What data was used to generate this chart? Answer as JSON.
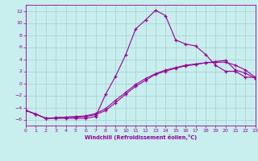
{
  "xlabel": "Windchill (Refroidissement éolien,°C)",
  "xlim": [
    0,
    23
  ],
  "ylim": [
    -7,
    13
  ],
  "xticks": [
    0,
    1,
    2,
    3,
    4,
    5,
    6,
    7,
    8,
    9,
    10,
    11,
    12,
    13,
    14,
    15,
    16,
    17,
    18,
    19,
    20,
    21,
    22,
    23
  ],
  "yticks": [
    -6,
    -4,
    -2,
    0,
    2,
    4,
    6,
    8,
    10,
    12
  ],
  "bg_color": "#c8eeee",
  "grid_color": "#aad4d4",
  "line_color": "#990099",
  "curve1_x": [
    0,
    1,
    2,
    3,
    4,
    5,
    6,
    7,
    8,
    9,
    10,
    11,
    12,
    13,
    14,
    15,
    16,
    17,
    18,
    19,
    20,
    21,
    22,
    23
  ],
  "curve1_y": [
    -4.5,
    -5.1,
    -5.8,
    -5.8,
    -5.8,
    -5.8,
    -5.8,
    -5.5,
    -1.8,
    1.2,
    4.7,
    9.0,
    10.5,
    12.1,
    11.2,
    7.2,
    6.5,
    6.2,
    4.8,
    3.0,
    2.0,
    2.0,
    1.0,
    1.0
  ],
  "curve2_x": [
    0,
    1,
    2,
    3,
    4,
    5,
    6,
    7,
    8,
    9,
    10,
    11,
    12,
    13,
    14,
    15,
    16,
    17,
    18,
    19,
    20,
    21,
    22,
    23
  ],
  "curve2_y": [
    -4.5,
    -5.1,
    -5.8,
    -5.7,
    -5.6,
    -5.6,
    -5.5,
    -5.2,
    -4.5,
    -3.2,
    -1.8,
    -0.5,
    0.5,
    1.5,
    2.0,
    2.5,
    2.9,
    3.1,
    3.4,
    3.5,
    3.5,
    3.0,
    2.2,
    1.0
  ],
  "curve3_x": [
    0,
    1,
    2,
    3,
    4,
    5,
    6,
    7,
    8,
    9,
    10,
    11,
    12,
    13,
    14,
    15,
    16,
    17,
    18,
    19,
    20,
    21,
    22,
    23
  ],
  "curve3_y": [
    -4.5,
    -5.1,
    -5.8,
    -5.7,
    -5.6,
    -5.5,
    -5.4,
    -5.0,
    -4.2,
    -2.8,
    -1.5,
    -0.2,
    0.8,
    1.6,
    2.2,
    2.6,
    3.0,
    3.2,
    3.4,
    3.6,
    3.8,
    2.2,
    1.7,
    0.8
  ]
}
